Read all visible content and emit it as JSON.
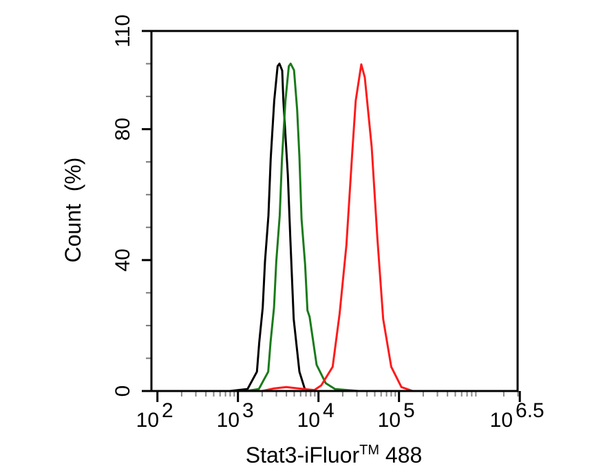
{
  "chart_data": {
    "type": "line",
    "title": "",
    "xlabel": "Stat3-iFluor",
    "xlabel_sup": "TM",
    "xlabel_suffix": " 488",
    "ylabel": "Count  (%)",
    "x_scale": "log10",
    "xlim_log10": [
      1.95,
      6.5
    ],
    "ylim": [
      0,
      110
    ],
    "x_ticks": [
      {
        "base": "10",
        "exp": "2",
        "value": 2
      },
      {
        "base": "10",
        "exp": "3",
        "value": 3
      },
      {
        "base": "10",
        "exp": "4",
        "value": 4
      },
      {
        "base": "10",
        "exp": "5",
        "value": 5
      },
      {
        "base": "10",
        "exp": "6.5",
        "value": 6.5
      }
    ],
    "y_ticks": [
      {
        "label": "0",
        "value": 0
      },
      {
        "label": "40",
        "value": 40
      },
      {
        "label": "80",
        "value": 80
      },
      {
        "label": "110",
        "value": 110
      }
    ],
    "grid": false,
    "series": [
      {
        "name": "black",
        "color": "#000000",
        "x_log10": [
          2.9,
          3.12,
          3.236,
          3.265,
          3.308,
          3.336,
          3.379,
          3.407,
          3.45,
          3.492,
          3.515,
          3.55,
          3.564,
          3.62,
          3.65,
          3.692,
          3.763,
          3.834,
          3.917
        ],
        "y": [
          0,
          0.6,
          5.9,
          15,
          25.5,
          39.6,
          53.6,
          71,
          88.7,
          99.2,
          100,
          97.9,
          88.7,
          66,
          46.6,
          22,
          5.9,
          0.3,
          0
        ]
      },
      {
        "name": "green",
        "color": "#1a7a1a",
        "x_log10": [
          3.1,
          3.26,
          3.376,
          3.405,
          3.448,
          3.476,
          3.519,
          3.547,
          3.59,
          3.632,
          3.655,
          3.697,
          3.735,
          3.763,
          3.79,
          3.834,
          3.863,
          3.89,
          3.977,
          4.09,
          4.205,
          4.5
        ],
        "y": [
          0,
          0.6,
          5.9,
          15,
          25.5,
          39.6,
          53.6,
          71,
          88.7,
          99.2,
          100,
          98,
          86,
          71.6,
          52.6,
          38.6,
          24.6,
          22.7,
          8,
          2.4,
          0.6,
          0
        ]
      },
      {
        "name": "red",
        "color": "#ff1a1a",
        "x_log10": [
          3.3,
          3.45,
          3.6,
          3.75,
          3.9,
          3.949,
          4.034,
          4.176,
          4.262,
          4.347,
          4.419,
          4.462,
          4.532,
          4.575,
          4.661,
          4.732,
          4.803,
          4.903,
          5.03,
          5.17
        ],
        "y": [
          0,
          0.8,
          1.2,
          0.8,
          0.4,
          0.3,
          1.7,
          7.4,
          23.6,
          44.6,
          72.6,
          88.7,
          99.8,
          95.8,
          74.6,
          46.6,
          22,
          7.4,
          1.2,
          0
        ]
      }
    ]
  }
}
